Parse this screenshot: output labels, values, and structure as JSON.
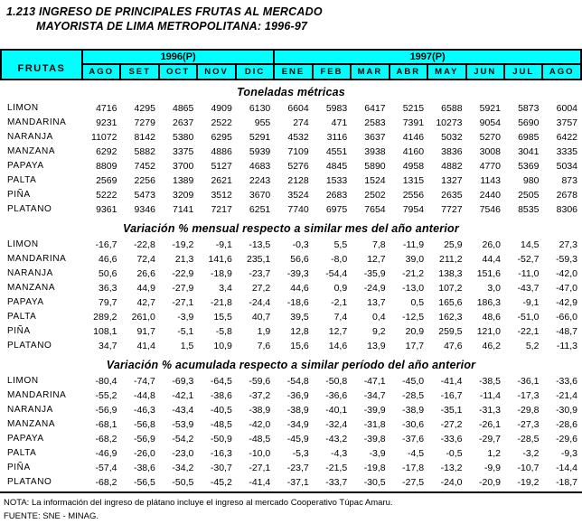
{
  "title": {
    "line1": "1.213 INGRESO DE PRINCIPALES FRUTAS AL MERCADO",
    "line2": "MAYORISTA DE LIMA METROPOLITANA: 1996-97"
  },
  "header": {
    "frutas_label": "FRUTAS",
    "year_groups": [
      {
        "label": "1996(P)",
        "span": 5
      },
      {
        "label": "1997(P)",
        "span": 8
      }
    ],
    "months": [
      "AGO",
      "SET",
      "OCT",
      "NOV",
      "DIC",
      "ENE",
      "FEB",
      "MAR",
      "ABR",
      "MAY",
      "JUN",
      "JUL",
      "AGO"
    ]
  },
  "sections": [
    {
      "heading": "Toneladas métricas",
      "rows": [
        {
          "fruit": "LIMON",
          "values": [
            4716,
            4295,
            4865,
            4909,
            6130,
            6604,
            5983,
            6417,
            5215,
            6588,
            5921,
            5873,
            6004
          ]
        },
        {
          "fruit": "MANDARINA",
          "values": [
            9231,
            7279,
            2637,
            2522,
            955,
            274,
            471,
            2583,
            7391,
            10273,
            9054,
            5690,
            3757
          ]
        },
        {
          "fruit": "NARANJA",
          "values": [
            11072,
            8142,
            5380,
            6295,
            5291,
            4532,
            3116,
            3637,
            4146,
            5032,
            5270,
            6985,
            6422
          ]
        },
        {
          "fruit": "MANZANA",
          "values": [
            6292,
            5882,
            3375,
            4886,
            5939,
            7109,
            4551,
            3938,
            4160,
            3836,
            3008,
            3041,
            3335
          ]
        },
        {
          "fruit": "PAPAYA",
          "values": [
            8809,
            7452,
            3700,
            5127,
            4683,
            5276,
            4845,
            5890,
            4958,
            4882,
            4770,
            5369,
            5034
          ]
        },
        {
          "fruit": "PALTA",
          "values": [
            2569,
            2256,
            1389,
            2621,
            2243,
            2128,
            1533,
            1524,
            1315,
            1327,
            1143,
            980,
            873
          ]
        },
        {
          "fruit": "PIÑA",
          "values": [
            5222,
            5473,
            3209,
            3512,
            3670,
            3524,
            2683,
            2502,
            2556,
            2635,
            2440,
            2505,
            2678
          ]
        },
        {
          "fruit": "PLATANO",
          "values": [
            9361,
            9346,
            7141,
            7217,
            6251,
            7740,
            6975,
            7654,
            7954,
            7727,
            7546,
            8535,
            8306
          ]
        }
      ]
    },
    {
      "heading": "Variación % mensual respecto a similar mes del año anterior",
      "rows": [
        {
          "fruit": "LIMON",
          "values": [
            "-16,7",
            "-22,8",
            "-19,2",
            "-9,1",
            "-13,5",
            "-0,3",
            "5,5",
            "7,8",
            "-11,9",
            "25,9",
            "26,0",
            "14,5",
            "27,3"
          ]
        },
        {
          "fruit": "MANDARINA",
          "values": [
            "46,6",
            "72,4",
            "21,3",
            "141,6",
            "235,1",
            "56,6",
            "-8,0",
            "12,7",
            "39,0",
            "211,2",
            "44,4",
            "-52,7",
            "-59,3"
          ]
        },
        {
          "fruit": "NARANJA",
          "values": [
            "50,6",
            "26,6",
            "-22,9",
            "-18,9",
            "-23,7",
            "-39,3",
            "-54,4",
            "-35,9",
            "-21,2",
            "138,3",
            "151,6",
            "-11,0",
            "-42,0"
          ]
        },
        {
          "fruit": "MANZANA",
          "values": [
            "36,3",
            "44,9",
            "-27,9",
            "3,4",
            "27,2",
            "44,6",
            "0,9",
            "-24,9",
            "-13,0",
            "107,2",
            "3,0",
            "-43,7",
            "-47,0"
          ]
        },
        {
          "fruit": "PAPAYA",
          "values": [
            "79,7",
            "42,7",
            "-27,1",
            "-21,8",
            "-24,4",
            "-18,6",
            "-2,1",
            "13,7",
            "0,5",
            "165,6",
            "186,3",
            "-9,1",
            "-42,9"
          ]
        },
        {
          "fruit": "PALTA",
          "values": [
            "289,2",
            "261,0",
            "-3,9",
            "15,5",
            "40,7",
            "39,5",
            "7,4",
            "0,4",
            "-12,5",
            "162,3",
            "48,6",
            "-51,0",
            "-66,0"
          ]
        },
        {
          "fruit": "PIÑA",
          "values": [
            "108,1",
            "91,7",
            "-5,1",
            "-5,8",
            "1,9",
            "12,8",
            "12,7",
            "9,2",
            "20,9",
            "259,5",
            "121,0",
            "-22,1",
            "-48,7"
          ]
        },
        {
          "fruit": "PLATANO",
          "values": [
            "34,7",
            "41,4",
            "1,5",
            "10,9",
            "7,6",
            "15,6",
            "14,6",
            "13,9",
            "17,7",
            "47,6",
            "46,2",
            "5,2",
            "-11,3"
          ]
        }
      ]
    },
    {
      "heading": "Variación % acumulada respecto a similar período del año anterior",
      "rows": [
        {
          "fruit": "LIMON",
          "values": [
            "-80,4",
            "-74,7",
            "-69,3",
            "-64,5",
            "-59,6",
            "-54,8",
            "-50,8",
            "-47,1",
            "-45,0",
            "-41,4",
            "-38,5",
            "-36,1",
            "-33,6"
          ]
        },
        {
          "fruit": "MANDARINA",
          "values": [
            "-55,2",
            "-44,8",
            "-42,1",
            "-38,6",
            "-37,2",
            "-36,9",
            "-36,6",
            "-34,7",
            "-28,5",
            "-16,7",
            "-11,4",
            "-17,3",
            "-21,4"
          ]
        },
        {
          "fruit": "NARANJA",
          "values": [
            "-56,9",
            "-46,3",
            "-43,4",
            "-40,5",
            "-38,9",
            "-38,9",
            "-40,1",
            "-39,9",
            "-38,9",
            "-35,1",
            "-31,3",
            "-29,8",
            "-30,9"
          ]
        },
        {
          "fruit": "MANZANA",
          "values": [
            "-68,1",
            "-56,8",
            "-53,9",
            "-48,5",
            "-42,0",
            "-34,9",
            "-32,4",
            "-31,8",
            "-30,6",
            "-27,2",
            "-26,1",
            "-27,3",
            "-28,6"
          ]
        },
        {
          "fruit": "PAPAYA",
          "values": [
            "-68,2",
            "-56,9",
            "-54,2",
            "-50,9",
            "-48,5",
            "-45,9",
            "-43,2",
            "-39,8",
            "-37,6",
            "-33,6",
            "-29,7",
            "-28,5",
            "-29,6"
          ]
        },
        {
          "fruit": "PALTA",
          "values": [
            "-46,9",
            "-26,0",
            "-23,0",
            "-16,3",
            "-10,0",
            "-5,3",
            "-4,3",
            "-3,9",
            "-4,5",
            "-0,5",
            "1,2",
            "-3,2",
            "-9,3"
          ]
        },
        {
          "fruit": "PIÑA",
          "values": [
            "-57,4",
            "-38,6",
            "-34,2",
            "-30,7",
            "-27,1",
            "-23,7",
            "-21,5",
            "-19,8",
            "-17,8",
            "-13,2",
            "-9,9",
            "-10,7",
            "-14,4"
          ]
        },
        {
          "fruit": "PLATANO",
          "values": [
            "-68,2",
            "-56,5",
            "-50,5",
            "-45,2",
            "-41,4",
            "-37,1",
            "-33,7",
            "-30,5",
            "-27,5",
            "-24,0",
            "-20,9",
            "-19,2",
            "-18,7"
          ]
        }
      ]
    }
  ],
  "footer": {
    "nota": "NOTA: La información del ingreso de plátano  incluye el ingreso al mercado Cooperativo Túpac Amaru.",
    "fuente": "FUENTE: SNE - MINAG."
  },
  "colors": {
    "header_bg": "#00FFFF",
    "border": "#000000",
    "text": "#000000"
  }
}
